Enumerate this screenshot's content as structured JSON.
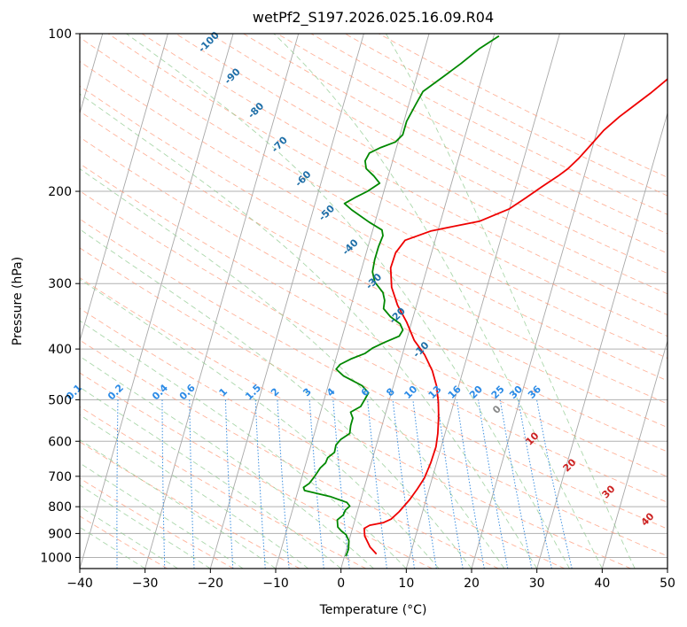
{
  "chart_data": {
    "type": "line",
    "title": "wetPf2_S197.2026.025.16.09.R04",
    "xlabel": "Temperature (°C)",
    "ylabel": "Pressure (hPa)",
    "xlim": [
      -40,
      50
    ],
    "ylim": [
      1050,
      100
    ],
    "x_ticks": [
      "−40",
      "−30",
      "−20",
      "−10",
      "0",
      "10",
      "20",
      "30",
      "40",
      "50"
    ],
    "y_ticks": [
      "100",
      "200",
      "300",
      "400",
      "500",
      "600",
      "700",
      "800",
      "900",
      "1000"
    ],
    "x_tick_values": [
      -40,
      -30,
      -20,
      -10,
      0,
      10,
      20,
      30,
      40,
      50
    ],
    "y_tick_values": [
      100,
      200,
      300,
      400,
      500,
      600,
      700,
      800,
      900,
      1000
    ],
    "series": [
      {
        "name": "temperature",
        "color": "#ee0000",
        "points": [
          [
            4.8,
            985
          ],
          [
            3.5,
            955
          ],
          [
            2.2,
            910
          ],
          [
            1.8,
            880
          ],
          [
            2.5,
            868
          ],
          [
            4.5,
            858
          ],
          [
            5.5,
            845
          ],
          [
            6.4,
            818
          ],
          [
            7.5,
            775
          ],
          [
            8.2,
            740
          ],
          [
            8.8,
            705
          ],
          [
            9.1,
            660
          ],
          [
            9.2,
            615
          ],
          [
            8.9,
            580
          ],
          [
            8.3,
            540
          ],
          [
            7.6,
            505
          ],
          [
            6.6,
            470
          ],
          [
            5.3,
            440
          ],
          [
            3.4,
            410
          ],
          [
            1.2,
            385
          ],
          [
            -0.8,
            355
          ],
          [
            -2.9,
            330
          ],
          [
            -4.6,
            305
          ],
          [
            -5.6,
            280
          ],
          [
            -5.5,
            262
          ],
          [
            -4.6,
            248
          ],
          [
            -1.0,
            238
          ],
          [
            6.0,
            228
          ],
          [
            10.0,
            216
          ],
          [
            12.0,
            206
          ],
          [
            14.0,
            196
          ],
          [
            16.0,
            187
          ],
          [
            17.2,
            181
          ],
          [
            18.4,
            173
          ],
          [
            19.8,
            162
          ],
          [
            21.0,
            153
          ],
          [
            22.8,
            144
          ],
          [
            24.6,
            137
          ],
          [
            26.5,
            130
          ],
          [
            28.0,
            124
          ],
          [
            29.6,
            118
          ],
          [
            31.3,
            111
          ],
          [
            32.7,
            105
          ],
          [
            33.7,
            101
          ]
        ]
      },
      {
        "name": "dewpoint",
        "color": "#008800",
        "points": [
          [
            0.2,
            995
          ],
          [
            0.3,
            965
          ],
          [
            0.0,
            930
          ],
          [
            -0.7,
            905
          ],
          [
            -1.6,
            890
          ],
          [
            -2.3,
            875
          ],
          [
            -2.5,
            862
          ],
          [
            -2.7,
            848
          ],
          [
            -2.0,
            830
          ],
          [
            -1.9,
            812
          ],
          [
            -1.4,
            798
          ],
          [
            -2.0,
            785
          ],
          [
            -4.8,
            765
          ],
          [
            -9.0,
            745
          ],
          [
            -9.3,
            735
          ],
          [
            -8.6,
            722
          ],
          [
            -8.2,
            705
          ],
          [
            -7.9,
            690
          ],
          [
            -7.6,
            675
          ],
          [
            -7.0,
            660
          ],
          [
            -6.9,
            645
          ],
          [
            -6.1,
            630
          ],
          [
            -6.2,
            610
          ],
          [
            -5.7,
            595
          ],
          [
            -4.6,
            580
          ],
          [
            -4.8,
            560
          ],
          [
            -4.8,
            542
          ],
          [
            -5.4,
            528
          ],
          [
            -4.1,
            515
          ],
          [
            -3.8,
            500
          ],
          [
            -3.5,
            485
          ],
          [
            -4.8,
            470
          ],
          [
            -8.1,
            450
          ],
          [
            -9.5,
            437
          ],
          [
            -9.1,
            428
          ],
          [
            -7.7,
            418
          ],
          [
            -5.8,
            408
          ],
          [
            -4.8,
            398
          ],
          [
            -3.2,
            388
          ],
          [
            -1.3,
            378
          ],
          [
            -1.0,
            368
          ],
          [
            -1.7,
            358
          ],
          [
            -3.5,
            347
          ],
          [
            -4.9,
            335
          ],
          [
            -5.1,
            323
          ],
          [
            -5.7,
            312
          ],
          [
            -7.4,
            298
          ],
          [
            -8.2,
            285
          ],
          [
            -8.4,
            270
          ],
          [
            -8.4,
            255
          ],
          [
            -8.2,
            243
          ],
          [
            -8.6,
            237
          ],
          [
            -10.9,
            229
          ],
          [
            -14.1,
            217
          ],
          [
            -15.5,
            211
          ],
          [
            -14.0,
            205
          ],
          [
            -12.5,
            200
          ],
          [
            -11.0,
            193
          ],
          [
            -12.2,
            187
          ],
          [
            -13.7,
            181
          ],
          [
            -14.2,
            175
          ],
          [
            -13.9,
            169
          ],
          [
            -12.4,
            165
          ],
          [
            -10.4,
            161
          ],
          [
            -9.6,
            156
          ],
          [
            -9.6,
            147
          ],
          [
            -8.9,
            136
          ],
          [
            -8.4,
            129
          ],
          [
            -6.0,
            121
          ],
          [
            -3.8,
            114
          ],
          [
            -1.7,
            107
          ],
          [
            0.8,
            101
          ]
        ]
      }
    ],
    "isotherm_labels": [
      "-100",
      "-90",
      "-80",
      "-70",
      "-60",
      "-50",
      "-40",
      "-30",
      "-20",
      "-10"
    ],
    "isotherm_label_values": [
      -100,
      -90,
      -80,
      -70,
      -60,
      -50,
      -40,
      -30,
      -20,
      -10
    ],
    "mixing_ratio_labels": [
      "0.1",
      "0.2",
      "0.4",
      "0.6",
      "1",
      "1.5",
      "2",
      "3",
      "4",
      "6",
      "8",
      "10",
      "13",
      "16",
      "20",
      "25",
      "30",
      "36"
    ],
    "mixing_ratio_label_values": [
      0.1,
      0.2,
      0.4,
      0.6,
      1,
      1.5,
      2,
      3,
      4,
      6,
      8,
      10,
      13,
      16,
      20,
      25,
      30,
      36
    ],
    "moist_adiabat_labels": [
      "0",
      "10",
      "20",
      "30",
      "40"
    ],
    "moist_adiabat_label_values": [
      0,
      10,
      20,
      30,
      40
    ],
    "colors": {
      "temperature": "#ee0000",
      "dewpoint": "#008800",
      "isotherm": "#a8a8a8",
      "isobar": "#b0b0b0",
      "dry_adiabat": "#ff9a7a",
      "moist_adiabat": "#8fc98f",
      "mixing_ratio": "#3d8fe0",
      "isotherm_label": "#1f6fa8",
      "mixing_label": "#2a8ae6",
      "moist_label": "#cc2222",
      "zero_label": "#888888"
    },
    "grid": true
  }
}
